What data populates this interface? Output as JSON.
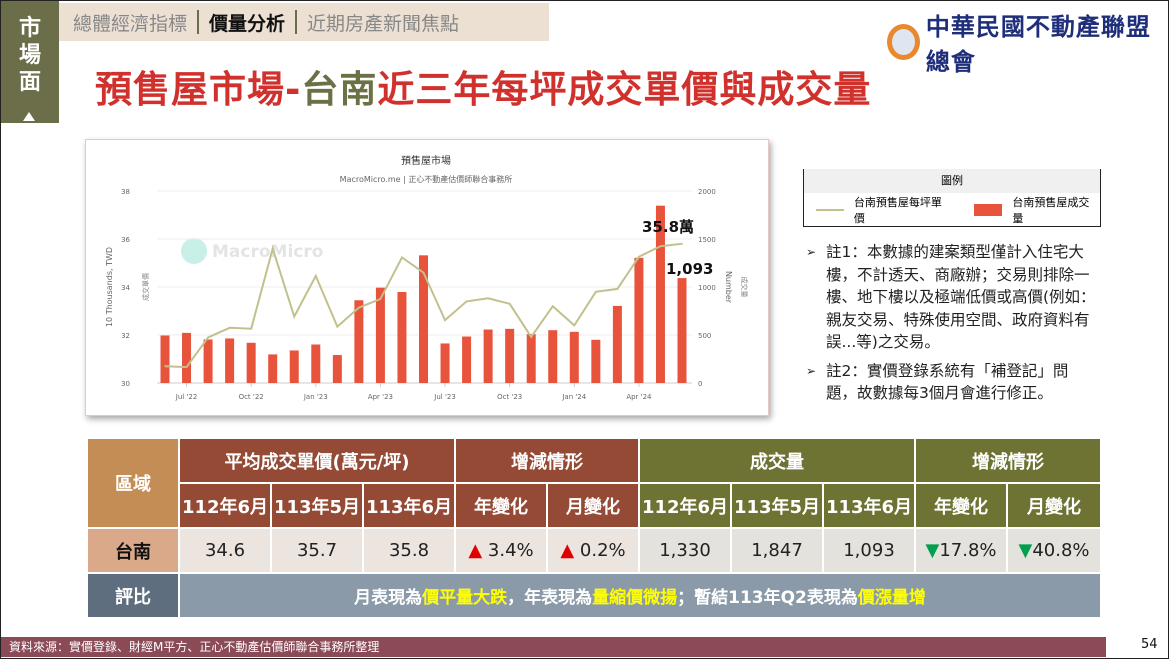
{
  "section_tab": {
    "label": "市場面"
  },
  "nav": {
    "items": [
      "總體經濟指標",
      "價量分析",
      "近期房產新聞焦點"
    ],
    "active": 1
  },
  "title": {
    "part1": "預售屋市場-",
    "part2": "台南",
    "part3": "近三年每坪成交單價與成交量"
  },
  "logo": {
    "text": "中華民國不動產聯盟總會"
  },
  "colors": {
    "bar": "#e8533c",
    "line": "#c2c08d",
    "title_red": "#d0312d",
    "olive": "#6b7045"
  },
  "chart_data": {
    "type": "bar+line",
    "title": "預售屋市場",
    "subtitle": "MacroMicro.me | 正心不動產估價師聯合事務所",
    "watermark": "MacroMicro",
    "categories": [
      "Jun '22",
      "Jul '22",
      "Aug '22",
      "Sep '22",
      "Oct '22",
      "Nov '22",
      "Dec '22",
      "Jan '23",
      "Feb '23",
      "Mar '23",
      "Apr '23",
      "May '23",
      "Jun '23",
      "Jul '23",
      "Aug '23",
      "Sep '23",
      "Oct '23",
      "Nov '23",
      "Dec '23",
      "Jan '24",
      "Feb '24",
      "Mar '24",
      "Apr '24",
      "May '24",
      "Jun '24"
    ],
    "x_ticks": [
      "Jul '22",
      "Oct '22",
      "Jan '23",
      "Apr '23",
      "Jul '23",
      "Oct '23",
      "Jan '24",
      "Apr '24"
    ],
    "series": [
      {
        "name": "台南預售屋成交量",
        "type": "bar",
        "axis": "right",
        "values": [
          495,
          522,
          453,
          464,
          419,
          298,
          339,
          401,
          291,
          862,
          993,
          948,
          1330,
          412,
          484,
          557,
          564,
          509,
          550,
          533,
          450,
          803,
          1304,
          1847,
          1093
        ]
      },
      {
        "name": "台南預售屋每坪單價",
        "type": "line",
        "axis": "left",
        "values": [
          30.7,
          30.66,
          31.9,
          32.3,
          32.26,
          35.6,
          32.77,
          34.46,
          32.35,
          33.14,
          33.5,
          35.23,
          34.6,
          32.62,
          33.4,
          33.53,
          33.3,
          31.92,
          33.2,
          32.4,
          33.8,
          33.92,
          35.26,
          35.7,
          35.8
        ]
      }
    ],
    "y_left": {
      "label": "10 Thousands, TWD",
      "sublabel": "成交單價",
      "range": [
        30,
        38
      ],
      "ticks": [
        "30",
        "32",
        "34",
        "36",
        "38"
      ]
    },
    "y_right": {
      "label": "Number",
      "sublabel": "成交量",
      "range": [
        0,
        2000
      ],
      "ticks": [
        "0",
        "500",
        "1000",
        "1500",
        "2000"
      ]
    },
    "annotations": [
      "35.8萬",
      "1,093"
    ],
    "grid": true
  },
  "legend": {
    "title": "圖例",
    "items": [
      "台南預售屋每坪單價",
      "台南預售屋成交量"
    ]
  },
  "notes": [
    "註1：本數據的建案類型僅計入住宅大樓，不計透天、商廠辦；交易則排除一樓、地下樓以及極端低價或高價(例如：親友交易、特殊使用空間、政府資料有誤...等)之交易。",
    "註2：實價登錄系統有「補登記」問題，故數據每3個月會進行修正。"
  ],
  "table": {
    "area_header": "區域",
    "price_header": "平均成交單價(萬元/坪)",
    "change_header": "增減情形",
    "volume_header": "成交量",
    "periods": [
      "112年6月",
      "113年5月",
      "113年6月"
    ],
    "changes": [
      "年變化",
      "月變化"
    ],
    "city": "台南",
    "price_values": [
      "34.6",
      "35.7",
      "35.8"
    ],
    "price_changes": [
      "3.4%",
      "0.2%"
    ],
    "volume_values": [
      "1,330",
      "1,847",
      "1,093"
    ],
    "volume_changes": [
      "17.8%",
      "40.8%"
    ],
    "rating_label": "評比",
    "rating": {
      "t1": "月表現為",
      "h1": "價平量大跌",
      "t2": "，年表現為",
      "h2": "量縮價微揚",
      "t3": "；暫結113年Q2表現為",
      "h3": "價漲量增"
    }
  },
  "footer": {
    "source": "資料來源：實價登錄、財經M平方、正心不動產估價師聯合事務所整理",
    "page": "54"
  }
}
